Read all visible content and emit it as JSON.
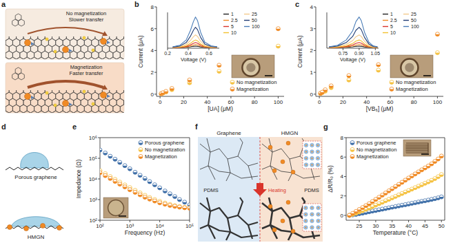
{
  "panel_labels": [
    "a",
    "b",
    "c",
    "d",
    "e",
    "f",
    "g"
  ],
  "diagrams": {
    "a": {
      "top": [
        "No magnetization",
        "Slower transfer"
      ],
      "bottom": [
        "Magnetization",
        "Faster transfer"
      ]
    },
    "d": {
      "top": "Porous graphene",
      "bottom": "HMGN"
    },
    "f": {
      "left": "Graphene",
      "right": "HMGN",
      "pdms_left": "PDMS",
      "heating": "Heating",
      "pdms_right": "PDMS"
    }
  },
  "chart_data": [
    {
      "type": "scatter",
      "x_label": "[UA] (μM)",
      "y_label": "Current (μA)",
      "x": [
        1,
        2.5,
        5,
        10,
        25,
        50,
        100
      ],
      "xlim": [
        -3,
        105
      ],
      "xticks": [
        0,
        20,
        40,
        60,
        80,
        100
      ],
      "ylim": [
        -0.2,
        8
      ],
      "yticks": [
        0,
        2,
        4,
        6,
        8
      ],
      "legend": "bottom-right",
      "marker": "half-filled",
      "series": [
        {
          "name": "No magnetization",
          "color": "#f5c242",
          "values": [
            0.04,
            0.1,
            0.2,
            0.42,
            1.05,
            2.1,
            4.4
          ]
        },
        {
          "name": "Magnetization",
          "color": "#f08a24",
          "values": [
            0.05,
            0.13,
            0.25,
            0.52,
            1.3,
            2.65,
            6.0
          ]
        }
      ]
    },
    {
      "type": "line",
      "x_label": "Voltage (V)",
      "tick_labels": "x",
      "x": [
        0.25,
        0.32,
        0.38,
        0.42,
        0.45,
        0.47,
        0.49,
        0.52,
        0.56,
        0.62,
        0.68
      ],
      "xlim": [
        0.2,
        0.7
      ],
      "xticks": [
        0.2,
        0.4,
        0.6
      ],
      "ylim": [
        0,
        7
      ],
      "legend": "right",
      "series": [
        {
          "name": "1",
          "color": "#222222",
          "values": [
            0.11,
            0.12,
            0.18,
            0.27,
            0.36,
            0.4,
            0.36,
            0.25,
            0.15,
            0.12,
            0.11
          ]
        },
        {
          "name": "2.5",
          "color": "#f08a24",
          "values": [
            0.12,
            0.15,
            0.25,
            0.43,
            0.61,
            0.7,
            0.63,
            0.4,
            0.21,
            0.14,
            0.12
          ]
        },
        {
          "name": "5",
          "color": "#d9342b",
          "values": [
            0.13,
            0.18,
            0.35,
            0.65,
            0.95,
            1.1,
            0.98,
            0.6,
            0.28,
            0.16,
            0.13
          ]
        },
        {
          "name": "10",
          "color": "#f2c12e",
          "values": [
            0.15,
            0.22,
            0.48,
            0.93,
            1.38,
            1.6,
            1.42,
            0.85,
            0.37,
            0.19,
            0.15
          ]
        },
        {
          "name": "25",
          "color": "#f3c98a",
          "values": [
            0.18,
            0.3,
            0.73,
            1.48,
            2.23,
            2.6,
            2.3,
            1.35,
            0.55,
            0.25,
            0.18
          ]
        },
        {
          "name": "50",
          "color": "#1f3b73",
          "values": [
            0.22,
            0.42,
            1.1,
            2.3,
            3.5,
            4.1,
            3.62,
            2.1,
            0.82,
            0.34,
            0.22
          ]
        },
        {
          "name": "100",
          "color": "#4a7db8",
          "values": [
            0.28,
            0.58,
            1.6,
            3.4,
            5.2,
            6.1,
            5.38,
            3.1,
            1.18,
            0.46,
            0.28
          ]
        }
      ]
    },
    {
      "type": "scatter",
      "x_label": "[VB₆] (μM)",
      "y_label": "Current (μA)",
      "x": [
        1,
        2.5,
        5,
        10,
        25,
        50,
        100
      ],
      "xlim": [
        -3,
        105
      ],
      "xticks": [
        0,
        20,
        40,
        60,
        80,
        100
      ],
      "ylim": [
        -0.1,
        4
      ],
      "yticks": [
        0,
        1,
        2,
        3,
        4
      ],
      "legend": "bottom-right",
      "marker": "half-filled",
      "series": [
        {
          "name": "No magnetization",
          "color": "#f5c242",
          "values": [
            0.03,
            0.07,
            0.14,
            0.3,
            0.65,
            1.1,
            1.9
          ]
        },
        {
          "name": "Magnetization",
          "color": "#f08a24",
          "values": [
            0.04,
            0.09,
            0.2,
            0.38,
            0.85,
            1.35,
            2.75
          ]
        }
      ]
    },
    {
      "type": "line",
      "x_label": "Voltage (V)",
      "tick_labels": "x",
      "x": [
        0.62,
        0.7,
        0.78,
        0.84,
        0.87,
        0.9,
        0.92,
        0.95,
        0.99,
        1.03,
        1.07
      ],
      "xlim": [
        0.6,
        1.08
      ],
      "xticks": [
        0.75,
        {
          "value": 0.9,
          "label": "0.90"
        },
        1.05
      ],
      "ylim": [
        0,
        7
      ],
      "legend": "right",
      "series": [
        {
          "name": "1",
          "color": "#222222",
          "values": [
            0.11,
            0.12,
            0.18,
            0.27,
            0.36,
            0.4,
            0.36,
            0.25,
            0.15,
            0.12,
            0.11
          ]
        },
        {
          "name": "2.5",
          "color": "#f08a24",
          "values": [
            0.12,
            0.15,
            0.25,
            0.43,
            0.61,
            0.7,
            0.63,
            0.4,
            0.21,
            0.14,
            0.12
          ]
        },
        {
          "name": "5",
          "color": "#d9342b",
          "values": [
            0.13,
            0.18,
            0.35,
            0.65,
            0.95,
            1.1,
            0.98,
            0.6,
            0.28,
            0.16,
            0.13
          ]
        },
        {
          "name": "10",
          "color": "#f2c12e",
          "values": [
            0.15,
            0.22,
            0.48,
            0.93,
            1.38,
            1.6,
            1.42,
            0.85,
            0.37,
            0.19,
            0.15
          ]
        },
        {
          "name": "25",
          "color": "#f3c98a",
          "values": [
            0.18,
            0.3,
            0.73,
            1.48,
            2.23,
            2.6,
            2.3,
            1.35,
            0.55,
            0.25,
            0.18
          ]
        },
        {
          "name": "50",
          "color": "#1f3b73",
          "values": [
            0.22,
            0.42,
            1.1,
            2.3,
            3.5,
            4.1,
            3.62,
            2.1,
            0.82,
            0.34,
            0.22
          ]
        },
        {
          "name": "100",
          "color": "#4a7db8",
          "values": [
            0.28,
            0.58,
            1.6,
            3.4,
            5.2,
            6.1,
            5.38,
            3.1,
            1.18,
            0.46,
            0.28
          ]
        }
      ]
    },
    {
      "type": "scatter",
      "x_label": "Frequency (Hz)",
      "y_label": "Impedance (Ω)",
      "log": true,
      "x": [
        100,
        150,
        220,
        320,
        460,
        680,
        1000,
        1500,
        2200,
        3200,
        4600,
        6800,
        10000,
        15000,
        22000,
        32000,
        46000,
        68000,
        100000
      ],
      "xlim": [
        100,
        100000
      ],
      "xticks": [
        {
          "value": 100,
          "label": "10²"
        },
        {
          "value": 1000,
          "label": "10³"
        },
        {
          "value": 10000,
          "label": "10⁴"
        },
        {
          "value": 100000,
          "label": "10⁵"
        }
      ],
      "ylim": [
        100,
        1000000
      ],
      "yticks": [
        {
          "value": 100,
          "label": "10²"
        },
        {
          "value": 1000,
          "label": "10³"
        },
        {
          "value": 10000,
          "label": "10⁴"
        },
        {
          "value": 100000,
          "label": "10⁵"
        },
        {
          "value": 1000000,
          "label": "10⁶"
        }
      ],
      "legend": "top-right",
      "marker": "half-filled",
      "series": [
        {
          "name": "Porous graphene",
          "color": "#3f6fa8",
          "values": [
            250000,
            180000,
            125000,
            90000,
            63000,
            44000,
            31000,
            21000,
            15000,
            10500,
            7400,
            5200,
            3700,
            2600,
            1900,
            1400,
            1000,
            750,
            550
          ]
        },
        {
          "name": "No magnetization",
          "color": "#f5c242",
          "values": [
            25000,
            18000,
            13000,
            9500,
            7000,
            5100,
            3800,
            2800,
            2100,
            1600,
            1250,
            1000,
            820,
            680,
            580,
            510,
            460,
            420,
            400
          ]
        },
        {
          "name": "Magnetization",
          "color": "#f08a24",
          "values": [
            20000,
            14500,
            10500,
            7600,
            5600,
            4100,
            3000,
            2250,
            1700,
            1300,
            1050,
            850,
            700,
            600,
            520,
            470,
            430,
            400,
            380
          ]
        }
      ]
    },
    {
      "type": "scatter",
      "x_label": "Temperature (°C)",
      "y_label": "ΔR/R₀ (%)",
      "x": [
        22,
        23,
        24,
        25,
        26,
        27,
        28,
        29,
        30,
        31,
        32,
        33,
        34,
        35,
        36,
        37,
        38,
        39,
        40,
        41,
        42,
        43,
        44,
        45,
        46,
        47,
        48,
        49,
        50
      ],
      "xlim": [
        21,
        51
      ],
      "xticks": [
        25,
        30,
        35,
        40,
        45,
        50
      ],
      "ylim": [
        -0.5,
        8
      ],
      "yticks": [
        0,
        2,
        4,
        6,
        8
      ],
      "legend": "top-left",
      "marker": "half-filled",
      "series": [
        {
          "name": "Porous graphene",
          "color": "#3f6fa8",
          "values": [
            0.0,
            0.05,
            0.1,
            0.17,
            0.23,
            0.3,
            0.37,
            0.44,
            0.5,
            0.57,
            0.64,
            0.7,
            0.77,
            0.84,
            0.9,
            0.97,
            1.04,
            1.1,
            1.17,
            1.24,
            1.3,
            1.37,
            1.44,
            1.5,
            1.57,
            1.64,
            1.72,
            1.8,
            1.9
          ]
        },
        {
          "name": "No magnetization",
          "color": "#f5c242",
          "values": [
            0.0,
            0.1,
            0.22,
            0.35,
            0.48,
            0.62,
            0.75,
            0.9,
            1.05,
            1.2,
            1.35,
            1.5,
            1.65,
            1.8,
            1.95,
            2.1,
            2.25,
            2.4,
            2.55,
            2.7,
            2.85,
            3.0,
            3.15,
            3.3,
            3.45,
            3.6,
            3.78,
            3.98,
            4.2
          ]
        },
        {
          "name": "Magnetization",
          "color": "#f08a24",
          "values": [
            0.0,
            0.2,
            0.4,
            0.6,
            0.8,
            1.0,
            1.2,
            1.42,
            1.64,
            1.86,
            2.08,
            2.3,
            2.52,
            2.74,
            2.96,
            3.18,
            3.4,
            3.62,
            3.84,
            4.05,
            4.26,
            4.47,
            4.68,
            4.88,
            5.08,
            5.3,
            5.55,
            5.8,
            6.1
          ]
        }
      ]
    }
  ]
}
